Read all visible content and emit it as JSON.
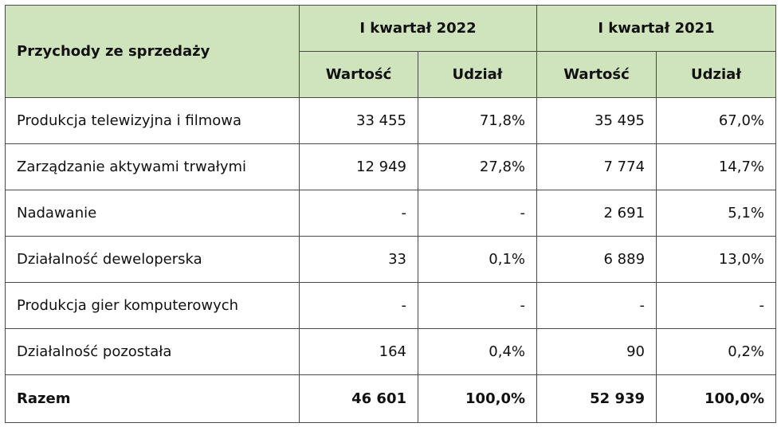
{
  "table": {
    "header_main": "Przychody ze sprzedaży",
    "periods": [
      "I kwartał 2022",
      "I kwartał 2021"
    ],
    "sub_headers": [
      "Wartość",
      "Udział",
      "Wartość",
      "Udział"
    ],
    "rows": [
      {
        "label": "Produkcja telewizyjna i filmowa",
        "v2022": "33 455",
        "s2022": "71,8%",
        "v2021": "35 495",
        "s2021": "67,0%"
      },
      {
        "label": "Zarządzanie aktywami trwałymi",
        "v2022": "12 949",
        "s2022": "27,8%",
        "v2021": "7 774",
        "s2021": "14,7%"
      },
      {
        "label": "Nadawanie",
        "v2022": "-",
        "s2022": "-",
        "v2021": "2 691",
        "s2021": "5,1%"
      },
      {
        "label": "Działalność deweloperska",
        "v2022": "33",
        "s2022": "0,1%",
        "v2021": "6 889",
        "s2021": "13,0%"
      },
      {
        "label": "Produkcja gier komputerowych",
        "v2022": "-",
        "s2022": "-",
        "v2021": "-",
        "s2021": "-"
      },
      {
        "label": "Działalność pozostała",
        "v2022": "164",
        "s2022": "0,4%",
        "v2021": "90",
        "s2021": "0,2%"
      }
    ],
    "total": {
      "label": "Razem",
      "v2022": "46 601",
      "s2022": "100,0%",
      "v2021": "52 939",
      "s2021": "100,0%"
    }
  }
}
